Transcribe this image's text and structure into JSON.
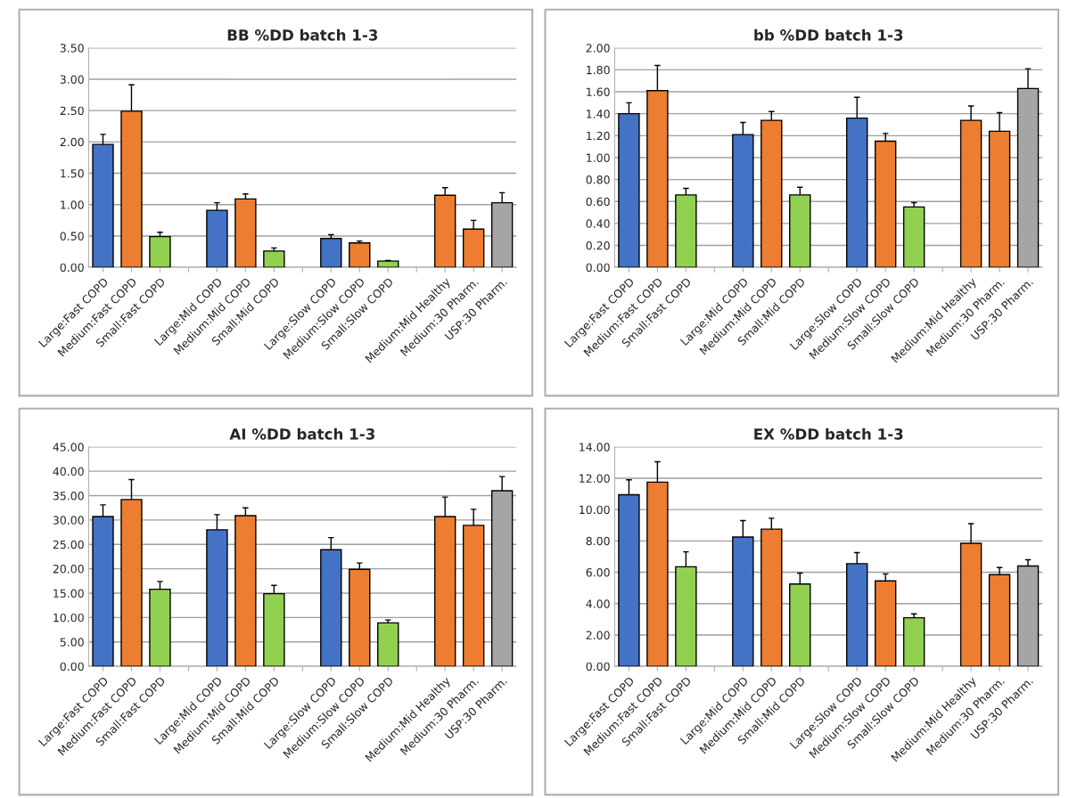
{
  "chart_data": [
    {
      "type": "bar",
      "title": "BB %DD batch 1-3",
      "categories": [
        "Large:Fast COPD",
        "Medium:Fast COPD",
        "Small:Fast COPD",
        null,
        "Large:Mid COPD",
        "Medium:Mid COPD",
        "Small:Mid COPD",
        null,
        "Large:Slow COPD",
        "Medium:Slow COPD",
        "Small:Slow COPD",
        null,
        "Medium:Mid Healthy",
        "Medium:30 Pharm.",
        "USP:30 Pharm."
      ],
      "values": [
        1.96,
        2.49,
        0.49,
        null,
        0.91,
        1.09,
        0.26,
        null,
        0.46,
        0.39,
        0.1,
        null,
        1.15,
        0.61,
        1.03
      ],
      "errors": [
        [
          1.96,
          2.12
        ],
        [
          2.49,
          2.91
        ],
        [
          0.49,
          0.56
        ],
        null,
        [
          0.91,
          1.03
        ],
        [
          1.09,
          1.17
        ],
        [
          0.26,
          0.31
        ],
        null,
        [
          0.46,
          0.52
        ],
        [
          0.39,
          0.42
        ],
        [
          0.1,
          0.11
        ],
        null,
        [
          1.15,
          1.27
        ],
        [
          0.61,
          0.75
        ],
        [
          1.03,
          1.19
        ]
      ],
      "colors": [
        "#4472c4",
        "#ed7d31",
        "#92d050",
        null,
        "#4472c4",
        "#ed7d31",
        "#92d050",
        null,
        "#4472c4",
        "#ed7d31",
        "#92d050",
        null,
        "#ed7d31",
        "#ed7d31",
        "#a5a5a5"
      ],
      "ylim": [
        0,
        3.5
      ],
      "yticks": [
        {
          "value": 0,
          "label": "0.00"
        },
        {
          "value": 0.5,
          "label": "0.50"
        },
        {
          "value": 1,
          "label": "1.00"
        },
        {
          "value": 1.5,
          "label": "1.50"
        },
        {
          "value": 2,
          "label": "2.00"
        },
        {
          "value": 2.5,
          "label": "2.50"
        },
        {
          "value": 3,
          "label": "3.00"
        },
        {
          "value": 3.5,
          "label": "3.50"
        }
      ],
      "grid": "y"
    },
    {
      "type": "bar",
      "title": "bb %DD batch 1-3",
      "categories": [
        "Large:Fast COPD",
        "Medium:Fast COPD",
        "Small:Fast COPD",
        null,
        "Large:Mid COPD",
        "Medium:Mid COPD",
        "Small:Mid COPD",
        null,
        "Large:Slow COPD",
        "Medium:Slow COPD",
        "Small:Slow COPD",
        null,
        "Medium:Mid Healthy",
        "Medium:30 Pharm.",
        "USP:30 Pharm."
      ],
      "values": [
        1.4,
        1.61,
        0.66,
        null,
        1.21,
        1.34,
        0.66,
        null,
        1.36,
        1.15,
        0.55,
        null,
        1.34,
        1.24,
        1.63
      ],
      "errors": [
        [
          1.4,
          1.5
        ],
        [
          1.61,
          1.84
        ],
        [
          0.66,
          0.72
        ],
        null,
        [
          1.21,
          1.32
        ],
        [
          1.34,
          1.42
        ],
        [
          0.66,
          0.73
        ],
        null,
        [
          1.36,
          1.55
        ],
        [
          1.15,
          1.22
        ],
        [
          0.55,
          0.59
        ],
        null,
        [
          1.34,
          1.47
        ],
        [
          1.24,
          1.41
        ],
        [
          1.63,
          1.81
        ]
      ],
      "colors": [
        "#4472c4",
        "#ed7d31",
        "#92d050",
        null,
        "#4472c4",
        "#ed7d31",
        "#92d050",
        null,
        "#4472c4",
        "#ed7d31",
        "#92d050",
        null,
        "#ed7d31",
        "#ed7d31",
        "#a5a5a5"
      ],
      "ylim": [
        0,
        2
      ],
      "yticks": [
        {
          "value": 0,
          "label": "0.00"
        },
        {
          "value": 0.2,
          "label": "0.20"
        },
        {
          "value": 0.4,
          "label": "0.40"
        },
        {
          "value": 0.6,
          "label": "0.60"
        },
        {
          "value": 0.8,
          "label": "0.80"
        },
        {
          "value": 1,
          "label": "1.00"
        },
        {
          "value": 1.2,
          "label": "1.20"
        },
        {
          "value": 1.4,
          "label": "1.40"
        },
        {
          "value": 1.6,
          "label": "1.60"
        },
        {
          "value": 1.8,
          "label": "1.80"
        },
        {
          "value": 2,
          "label": "2.00"
        }
      ],
      "grid": "y"
    },
    {
      "type": "bar",
      "title": "AI %DD batch 1-3",
      "categories": [
        "Large:Fast COPD",
        "Medium:Fast COPD",
        "Small:Fast COPD",
        null,
        "Large:Mid COPD",
        "Medium:Mid COPD",
        "Small:Mid COPD",
        null,
        "Large:Slow COPD",
        "Medium:Slow COPD",
        "Small:Slow COPD",
        null,
        "Medium:Mid Healthy",
        "Medium:30 Pharm.",
        "USP:30 Pharm."
      ],
      "values": [
        30.7,
        34.2,
        15.8,
        null,
        28.0,
        30.9,
        14.9,
        null,
        23.9,
        19.9,
        8.9,
        null,
        30.7,
        28.9,
        36.0
      ],
      "errors": [
        [
          30.7,
          33.1
        ],
        [
          34.2,
          38.3
        ],
        [
          15.8,
          17.4
        ],
        null,
        [
          28.0,
          31.1
        ],
        [
          30.9,
          32.5
        ],
        [
          14.9,
          16.6
        ],
        null,
        [
          23.9,
          26.4
        ],
        [
          19.9,
          21.2
        ],
        [
          8.9,
          9.5
        ],
        null,
        [
          30.7,
          34.7
        ],
        [
          28.9,
          32.2
        ],
        [
          36.0,
          38.9
        ]
      ],
      "colors": [
        "#4472c4",
        "#ed7d31",
        "#92d050",
        null,
        "#4472c4",
        "#ed7d31",
        "#92d050",
        null,
        "#4472c4",
        "#ed7d31",
        "#92d050",
        null,
        "#ed7d31",
        "#ed7d31",
        "#a5a5a5"
      ],
      "ylim": [
        0,
        45
      ],
      "yticks": [
        {
          "value": 0,
          "label": "0.00"
        },
        {
          "value": 5,
          "label": "5.00"
        },
        {
          "value": 10,
          "label": "10.00"
        },
        {
          "value": 15,
          "label": "15.00"
        },
        {
          "value": 20,
          "label": "20.00"
        },
        {
          "value": 25,
          "label": "25.00"
        },
        {
          "value": 30,
          "label": "30.00"
        },
        {
          "value": 35,
          "label": "35.00"
        },
        {
          "value": 40,
          "label": "40.00"
        },
        {
          "value": 45,
          "label": "45.00"
        }
      ],
      "grid": "y"
    },
    {
      "type": "bar",
      "title": "EX %DD batch 1-3",
      "categories": [
        "Large:Fast COPD",
        "Medium:Fast COPD",
        "Small:Fast COPD",
        null,
        "Large:Mid COPD",
        "Medium:Mid COPD",
        "Small:Mid COPD",
        null,
        "Large:Slow COPD",
        "Medium:Slow COPD",
        "Small:Slow COPD",
        null,
        "Medium:Mid Healthy",
        "Medium:30 Pharm.",
        "USP:30 Pharm."
      ],
      "values": [
        10.95,
        11.75,
        6.35,
        null,
        8.25,
        8.75,
        5.25,
        null,
        6.55,
        5.45,
        3.1,
        null,
        7.85,
        5.85,
        6.4
      ],
      "errors": [
        [
          10.95,
          11.9
        ],
        [
          11.75,
          13.05
        ],
        [
          6.35,
          7.3
        ],
        null,
        [
          8.25,
          9.3
        ],
        [
          8.75,
          9.45
        ],
        [
          5.25,
          5.95
        ],
        null,
        [
          6.55,
          7.25
        ],
        [
          5.45,
          5.9
        ],
        [
          3.1,
          3.35
        ],
        null,
        [
          7.85,
          9.1
        ],
        [
          5.85,
          6.3
        ],
        [
          6.4,
          6.8
        ]
      ],
      "colors": [
        "#4472c4",
        "#ed7d31",
        "#92d050",
        null,
        "#4472c4",
        "#ed7d31",
        "#92d050",
        null,
        "#4472c4",
        "#ed7d31",
        "#92d050",
        null,
        "#ed7d31",
        "#ed7d31",
        "#a5a5a5"
      ],
      "ylim": [
        0,
        14
      ],
      "yticks": [
        {
          "value": 0,
          "label": "0.00"
        },
        {
          "value": 2,
          "label": "2.00"
        },
        {
          "value": 4,
          "label": "4.00"
        },
        {
          "value": 6,
          "label": "6.00"
        },
        {
          "value": 8,
          "label": "8.00"
        },
        {
          "value": 10,
          "label": "10.00"
        },
        {
          "value": 12,
          "label": "12.00"
        },
        {
          "value": 14,
          "label": "14.00"
        }
      ],
      "grid": "y"
    }
  ]
}
